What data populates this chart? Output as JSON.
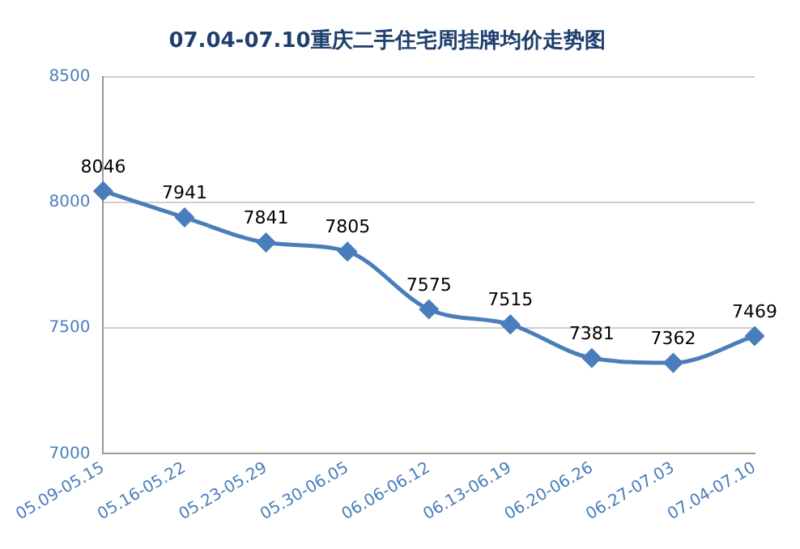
{
  "chart_data": {
    "type": "line",
    "title": "07.04-07.10重庆二手住宅周挂牌均价走势图",
    "categories": [
      "05.09-05.15",
      "05.16-05.22",
      "05.23-05.29",
      "05.30-06.05",
      "06.06-06.12",
      "06.13-06.19",
      "06.20-06.26",
      "06.27-07.03",
      "07.04-07.10"
    ],
    "series": [
      {
        "color": "#4a7ebb",
        "values": [
          8046,
          7941,
          7841,
          7805,
          7575,
          7515,
          7381,
          7362,
          7469
        ]
      }
    ],
    "ylim": [
      7000,
      8500
    ],
    "yticks": [
      7000,
      7500,
      8000,
      8500
    ],
    "grid": "y",
    "marker": "diamond",
    "line_style": "solid",
    "data_labels": true,
    "legend": false
  }
}
